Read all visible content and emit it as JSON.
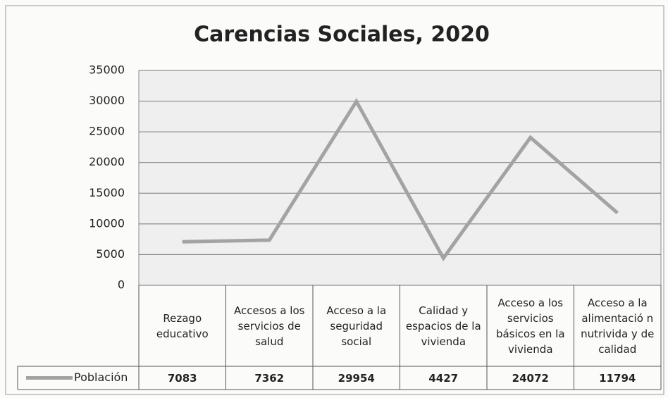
{
  "chart_data": {
    "type": "line",
    "title": "Carencias  Sociales, 2020",
    "categories": [
      "Rezago educativo",
      "Accesos a los servicios de salud",
      "Acceso a la seguridad social",
      "Calidad y espacios de la vivienda",
      "Acceso a los servicios básicos en la vivienda",
      "Acceso a la alimentació n nutrivida y de calidad"
    ],
    "series": [
      {
        "name": "Población",
        "color": "#a3a3a3",
        "values": [
          7083,
          7362,
          29954,
          4427,
          24072,
          11794
        ]
      }
    ],
    "ylim": [
      0,
      35000
    ],
    "yticks": [
      0,
      5000,
      10000,
      15000,
      20000,
      25000,
      30000,
      35000
    ],
    "grid": true
  }
}
